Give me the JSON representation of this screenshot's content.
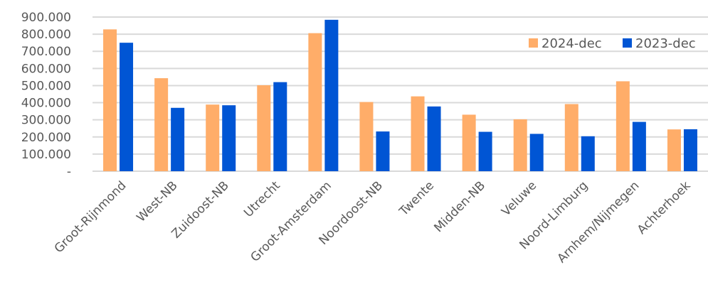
{
  "chart_data": {
    "type": "bar",
    "title": "",
    "xlabel": "",
    "ylabel": "",
    "categories": [
      "Groot-Rijnmond",
      "West-NB",
      "Zuidoost-NB",
      "Utrecht",
      "Groot-Amsterdam",
      "Noordoost-NB",
      "Twente",
      "Midden-NB",
      "Veluwe",
      "Noord-Limburg",
      "Arnhem/Nijmegen",
      "Achterhoek"
    ],
    "series": [
      {
        "name": "2024-dec",
        "color": "#ffad69",
        "values": [
          828000,
          543000,
          389000,
          502000,
          806000,
          404000,
          437000,
          330000,
          303000,
          392000,
          525000,
          244000
        ]
      },
      {
        "name": "2023-dec",
        "color": "#0055d4",
        "values": [
          750000,
          370000,
          385000,
          520000,
          884000,
          232000,
          378000,
          230000,
          218000,
          204000,
          288000,
          245000
        ]
      }
    ],
    "ylim": [
      0,
      900000
    ],
    "yticks": [
      {
        "value": 0,
        "label": "-"
      },
      {
        "value": 100000,
        "label": "100.000"
      },
      {
        "value": 200000,
        "label": "200.000"
      },
      {
        "value": 300000,
        "label": "300.000"
      },
      {
        "value": 400000,
        "label": "400.000"
      },
      {
        "value": 500000,
        "label": "500.000"
      },
      {
        "value": 600000,
        "label": "600.000"
      },
      {
        "value": 700000,
        "label": "700.000"
      },
      {
        "value": 800000,
        "label": "800.000"
      },
      {
        "value": 900000,
        "label": "900.000"
      }
    ],
    "grid": true,
    "legend": "top-right"
  }
}
